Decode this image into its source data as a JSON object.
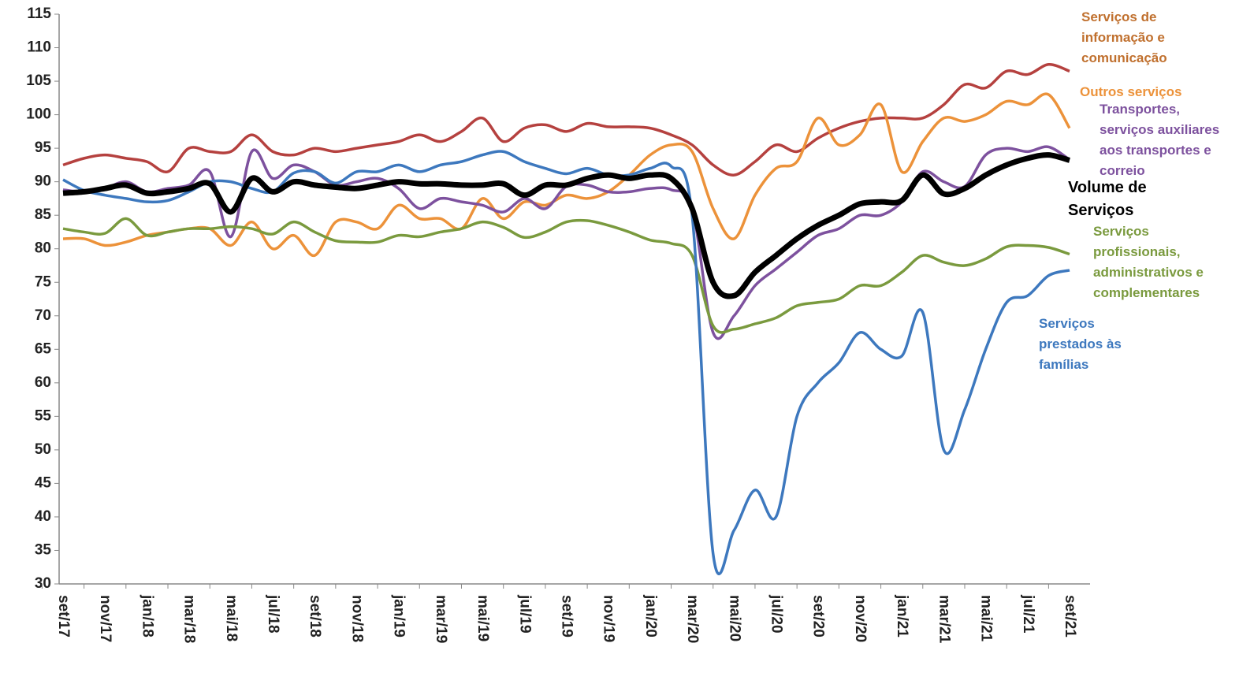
{
  "chart_data": {
    "type": "line",
    "categories": [
      "set/17",
      null,
      "nov/17",
      null,
      "jan/18",
      null,
      "mar/18",
      null,
      "mai/18",
      null,
      "jul/18",
      null,
      "set/18",
      null,
      "nov/18",
      null,
      "jan/19",
      null,
      "mar/19",
      null,
      "mai/19",
      null,
      "jul/19",
      null,
      "set/19",
      null,
      "nov/19",
      null,
      "jan/20",
      null,
      "mar/20",
      null,
      "mai/20",
      null,
      "jul/20",
      null,
      "set/20",
      null,
      "nov/20",
      null,
      "jan/21",
      null,
      "mar/21",
      null,
      "mai/21",
      null,
      "jul/21",
      null,
      "set/21"
    ],
    "ylim": [
      30,
      115
    ],
    "yticks": [
      30,
      35,
      40,
      45,
      50,
      55,
      60,
      65,
      70,
      75,
      80,
      85,
      90,
      95,
      100,
      105,
      110,
      115
    ],
    "series": [
      {
        "name": "Serviços de informação e comunicação",
        "color": "#b5413f",
        "label_color": "#c0702e",
        "values": [
          92.5,
          93.5,
          94,
          93.5,
          93,
          91.5,
          95,
          94.5,
          94.5,
          97,
          94.5,
          94,
          95,
          94.5,
          95,
          95.5,
          96,
          97,
          96,
          97.5,
          99.5,
          96,
          98,
          98.5,
          97.5,
          98.7,
          98.2,
          98.2,
          98,
          97,
          95.5,
          92.5,
          91,
          93,
          95.5,
          94.5,
          96.5,
          98,
          99,
          99.5,
          99.5,
          99.5,
          101.5,
          104.5,
          104,
          106.5,
          106,
          107.5,
          106.5
        ]
      },
      {
        "name": "Outros serviços",
        "color": "#ec923a",
        "values": [
          81.5,
          81.5,
          80.5,
          81,
          82,
          82.5,
          83,
          83,
          80.5,
          84,
          80,
          82,
          79,
          84,
          84,
          83,
          86.5,
          84.5,
          84.5,
          83,
          87.5,
          84.5,
          87,
          86.5,
          88,
          87.5,
          88.5,
          91,
          94,
          95.5,
          94.5,
          86,
          81.5,
          88,
          92,
          93,
          99.5,
          95.5,
          97,
          101.5,
          91.5,
          96,
          99.5,
          99,
          100,
          102,
          101.5,
          103,
          98
        ]
      },
      {
        "name": "Transportes, serviços auxiliares aos transportes e correio",
        "color": "#7d519e",
        "values": [
          88.8,
          88.5,
          89,
          90,
          88.5,
          89,
          89.5,
          91.5,
          81.8,
          94.5,
          90.5,
          92.5,
          91.5,
          89.5,
          90,
          90.5,
          89,
          86,
          87.5,
          87,
          86.5,
          85.5,
          87.5,
          86,
          89.3,
          89.5,
          88.5,
          88.5,
          89,
          88.8,
          86,
          67.5,
          70,
          74.5,
          77,
          79.5,
          82,
          83,
          85,
          85,
          87,
          91.5,
          90,
          89.3,
          94,
          95,
          94.5,
          95.2,
          93.3
        ]
      },
      {
        "name": "Serviços profissionais, administrativos e complementares",
        "color": "#7a9a3e",
        "values": [
          83,
          82.5,
          82.3,
          84.5,
          82,
          82.5,
          83,
          83,
          83.3,
          83,
          82.2,
          84,
          82.5,
          81.2,
          81,
          81,
          82,
          81.8,
          82.5,
          83,
          84,
          83.2,
          81.7,
          82.5,
          84,
          84.2,
          83.5,
          82.5,
          81.3,
          80.8,
          79,
          68.5,
          68,
          68.8,
          69.7,
          71.5,
          72,
          72.5,
          74.5,
          74.5,
          76.5,
          79,
          78,
          77.5,
          78.5,
          80.3,
          80.5,
          80.2,
          79.2
        ]
      },
      {
        "name": "Serviços prestados às famílias",
        "color": "#3d78be",
        "values": [
          90.3,
          88.7,
          88,
          87.5,
          87,
          87.2,
          88.5,
          90,
          90,
          89,
          88.5,
          91.3,
          91.5,
          89.8,
          91.5,
          91.5,
          92.5,
          91.5,
          92.5,
          93,
          94,
          94.5,
          93,
          92,
          91.2,
          92,
          91,
          91,
          92,
          92.3,
          85,
          34.5,
          38,
          44,
          40,
          55,
          60,
          63,
          67.5,
          65,
          64,
          70.5,
          50,
          56,
          65,
          72,
          73,
          76,
          76.8
        ]
      },
      {
        "name": "Volume de Serviços",
        "color": "#000000",
        "values": [
          88.3,
          88.5,
          89,
          89.5,
          88.3,
          88.5,
          89,
          89.7,
          85.5,
          90.5,
          88.5,
          90,
          89.5,
          89.2,
          89,
          89.5,
          90,
          89.7,
          89.7,
          89.5,
          89.5,
          89.7,
          88,
          89.5,
          89.5,
          90.5,
          91,
          90.5,
          91,
          90.5,
          86,
          75,
          73,
          76.5,
          79,
          81.5,
          83.5,
          85,
          86.7,
          87,
          87.2,
          91,
          88.2,
          89,
          91,
          92.5,
          93.5,
          94,
          93.2
        ]
      }
    ]
  }
}
